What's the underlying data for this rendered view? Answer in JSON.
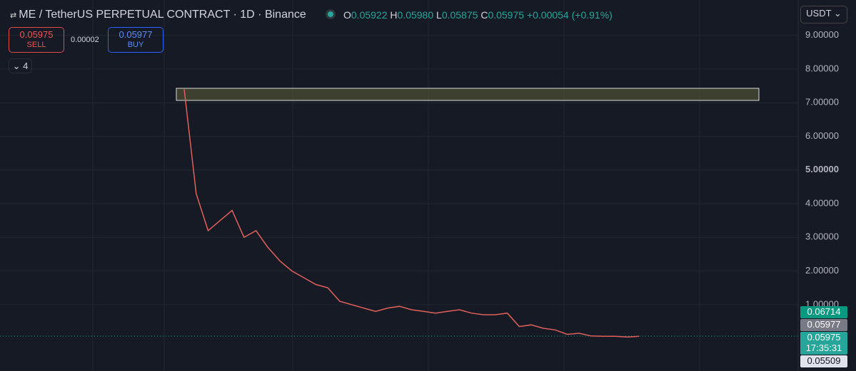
{
  "header": {
    "symbol": "ME / TetherUS PERPETUAL CONTRACT · 1D · Binance",
    "o_label": "O",
    "o": "0.05922",
    "h_label": "H",
    "h": "0.05980",
    "l_label": "L",
    "l": "0.05875",
    "c_label": "C",
    "c": "0.05975",
    "change": "+0.00054 (+0.91%)"
  },
  "trade": {
    "sell_price": "0.05975",
    "sell": "SELL",
    "spread": "0.00002",
    "buy_price": "0.05977",
    "buy": "BUY",
    "indicators": "4"
  },
  "currency": "USDT",
  "badges": {
    "high": "0.06714",
    "ask": "0.05977",
    "last": "0.05975",
    "countdown": "17:35:31",
    "low": "0.05509"
  },
  "chart_data": {
    "type": "line",
    "color": "#e0605a",
    "categories": [
      null,
      null,
      null,
      null,
      null,
      null,
      null,
      null,
      null,
      null,
      null,
      null,
      null,
      null,
      null,
      null,
      null,
      null,
      null,
      null,
      null,
      null,
      null,
      null,
      null,
      null,
      null,
      null,
      null,
      null,
      null,
      null,
      null,
      null,
      null,
      null,
      null,
      null,
      null
    ],
    "values": [
      7.4,
      4.3,
      3.2,
      3.5,
      3.8,
      3.0,
      3.2,
      2.7,
      2.3,
      2.0,
      1.8,
      1.6,
      1.5,
      1.1,
      1.0,
      0.9,
      0.8,
      0.9,
      0.95,
      0.85,
      0.8,
      0.75,
      0.8,
      0.85,
      0.75,
      0.7,
      0.7,
      0.75,
      0.35,
      0.4,
      0.3,
      0.25,
      0.12,
      0.15,
      0.07,
      0.06,
      0.06,
      0.04,
      0.06
    ],
    "ylim": [
      -0.97,
      10.05
    ],
    "yticks": [
      {
        "value": 1,
        "label": "1.00000"
      },
      {
        "value": 2,
        "label": "2.00000"
      },
      {
        "value": 3,
        "label": "3.00000"
      },
      {
        "value": 4,
        "label": "4.00000"
      },
      {
        "value": 5,
        "label": "5.00000"
      },
      {
        "value": 6,
        "label": "6.00000"
      },
      {
        "value": 7,
        "label": "7.00000"
      },
      {
        "value": 8,
        "label": "8.00000"
      },
      {
        "value": 9,
        "label": "9.00000"
      }
    ],
    "grid": true
  }
}
